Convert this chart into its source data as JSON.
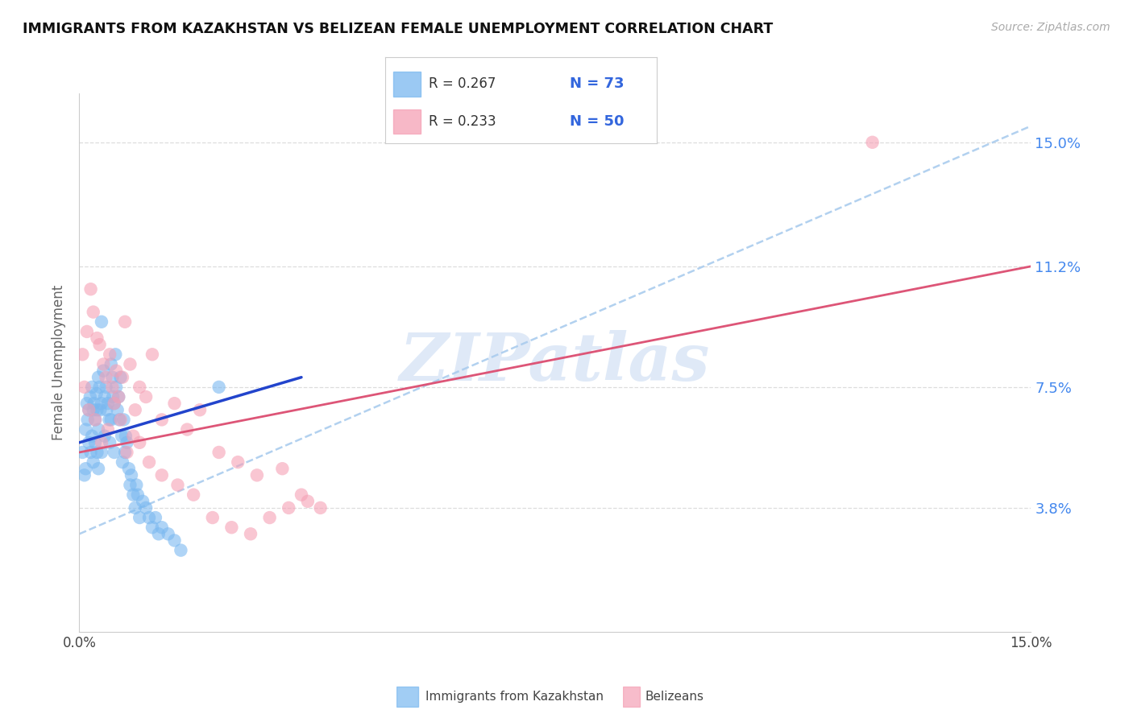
{
  "title": "IMMIGRANTS FROM KAZAKHSTAN VS BELIZEAN FEMALE UNEMPLOYMENT CORRELATION CHART",
  "source": "Source: ZipAtlas.com",
  "ylabel": "Female Unemployment",
  "y_tick_labels": [
    "3.8%",
    "7.5%",
    "11.2%",
    "15.0%"
  ],
  "y_tick_values": [
    3.8,
    7.5,
    11.2,
    15.0
  ],
  "xlim": [
    0.0,
    15.0
  ],
  "ylim": [
    0.0,
    16.5
  ],
  "legend_blue_r": "R = 0.267",
  "legend_blue_n": "N = 73",
  "legend_pink_r": "R = 0.233",
  "legend_pink_n": "N = 50",
  "legend_label_blue": "Immigrants from Kazakhstan",
  "legend_label_pink": "Belizeans",
  "blue_color": "#7ab8f0",
  "pink_color": "#f5a0b5",
  "trend_blue_color": "#2244cc",
  "trend_pink_color": "#dd5577",
  "dashed_line_color": "#aaccee",
  "watermark": "ZIPatlas",
  "watermark_color": "#c5d8f2",
  "blue_scatter_x": [
    0.05,
    0.08,
    0.1,
    0.1,
    0.12,
    0.13,
    0.15,
    0.15,
    0.17,
    0.18,
    0.2,
    0.2,
    0.22,
    0.22,
    0.23,
    0.25,
    0.25,
    0.27,
    0.28,
    0.28,
    0.3,
    0.3,
    0.3,
    0.32,
    0.33,
    0.35,
    0.35,
    0.38,
    0.4,
    0.4,
    0.42,
    0.43,
    0.45,
    0.47,
    0.48,
    0.5,
    0.5,
    0.52,
    0.53,
    0.55,
    0.55,
    0.57,
    0.58,
    0.6,
    0.62,
    0.63,
    0.65,
    0.67,
    0.68,
    0.7,
    0.72,
    0.73,
    0.75,
    0.78,
    0.8,
    0.82,
    0.85,
    0.88,
    0.9,
    0.92,
    0.95,
    1.0,
    1.05,
    1.1,
    1.15,
    1.2,
    1.25,
    1.3,
    1.4,
    1.5,
    1.6,
    2.2,
    0.35
  ],
  "blue_scatter_y": [
    5.5,
    4.8,
    6.2,
    5.0,
    7.0,
    6.5,
    5.8,
    6.8,
    7.2,
    5.5,
    7.5,
    6.0,
    6.8,
    5.2,
    7.0,
    6.5,
    5.8,
    7.3,
    6.8,
    5.5,
    7.8,
    6.2,
    5.0,
    7.5,
    6.8,
    7.0,
    5.5,
    8.0,
    7.2,
    6.0,
    7.5,
    6.8,
    7.0,
    6.5,
    5.8,
    8.2,
    6.5,
    7.8,
    7.2,
    7.0,
    5.5,
    8.5,
    7.5,
    6.8,
    7.2,
    6.5,
    7.8,
    6.0,
    5.2,
    6.5,
    5.5,
    6.0,
    5.8,
    5.0,
    4.5,
    4.8,
    4.2,
    3.8,
    4.5,
    4.2,
    3.5,
    4.0,
    3.8,
    3.5,
    3.2,
    3.5,
    3.0,
    3.2,
    3.0,
    2.8,
    2.5,
    7.5,
    9.5
  ],
  "pink_scatter_x": [
    0.05,
    0.08,
    0.12,
    0.18,
    0.22,
    0.28,
    0.32,
    0.38,
    0.42,
    0.48,
    0.52,
    0.58,
    0.62,
    0.68,
    0.72,
    0.8,
    0.88,
    0.95,
    1.05,
    1.15,
    1.3,
    1.5,
    1.7,
    1.9,
    2.2,
    2.5,
    2.8,
    3.2,
    3.5,
    3.8,
    0.25,
    0.35,
    0.45,
    0.55,
    0.65,
    0.75,
    0.85,
    0.95,
    1.1,
    1.3,
    1.55,
    1.8,
    2.1,
    2.4,
    2.7,
    3.0,
    3.3,
    3.6,
    0.15,
    12.5
  ],
  "pink_scatter_y": [
    8.5,
    7.5,
    9.2,
    10.5,
    9.8,
    9.0,
    8.8,
    8.2,
    7.8,
    8.5,
    7.5,
    8.0,
    7.2,
    7.8,
    9.5,
    8.2,
    6.8,
    7.5,
    7.2,
    8.5,
    6.5,
    7.0,
    6.2,
    6.8,
    5.5,
    5.2,
    4.8,
    5.0,
    4.2,
    3.8,
    6.5,
    5.8,
    6.2,
    7.0,
    6.5,
    5.5,
    6.0,
    5.8,
    5.2,
    4.8,
    4.5,
    4.2,
    3.5,
    3.2,
    3.0,
    3.5,
    3.8,
    4.0,
    6.8,
    15.0
  ],
  "blue_trend_x0": 0.0,
  "blue_trend_y0": 5.8,
  "blue_trend_x1": 3.5,
  "blue_trend_y1": 7.8,
  "pink_trend_x0": 0.0,
  "pink_trend_y0": 5.5,
  "pink_trend_x1": 15.0,
  "pink_trend_y1": 11.2,
  "dashed_x0": 0.0,
  "dashed_y0": 3.0,
  "dashed_x1": 15.0,
  "dashed_y1": 15.5
}
